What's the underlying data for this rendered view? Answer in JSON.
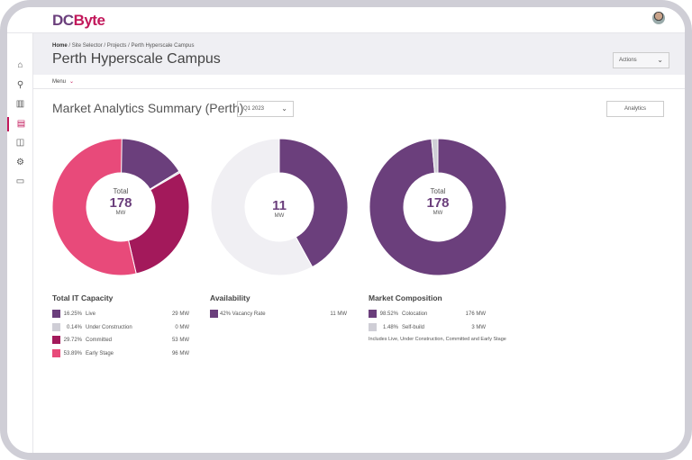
{
  "brand": {
    "logo_part1": "DC",
    "logo_part2": "Byte"
  },
  "sidebar": {
    "items": [
      {
        "icon": "home-icon"
      },
      {
        "icon": "search-icon"
      },
      {
        "icon": "bar-chart-icon"
      },
      {
        "icon": "document-icon",
        "active": true
      },
      {
        "icon": "book-icon"
      },
      {
        "icon": "gear-icon"
      },
      {
        "icon": "chat-icon"
      }
    ]
  },
  "breadcrumb": [
    "Home",
    "Site Selector",
    "Projects",
    "Perth Hyperscale Campus"
  ],
  "page_title": "Perth Hyperscale Campus",
  "actions_label": "Actions",
  "menu_label": "Menu",
  "section_title": "Market Analytics Summary (Perth)",
  "period_select": "Q1 2023",
  "analytics_button": "Analytics",
  "colors": {
    "purple": "#6b3f7c",
    "magenta": "#a3195b",
    "pink": "#e84a7a",
    "grey": "#cfced6",
    "light": "#f0eff3"
  },
  "chart_data": [
    {
      "type": "pie",
      "title": "Total IT Capacity",
      "center": {
        "label": "Total",
        "value": "178",
        "unit": "MW"
      },
      "slices": [
        {
          "name": "Live",
          "pct": "16.25%",
          "value": 16.25,
          "mw": "29",
          "color": "#6b3f7c"
        },
        {
          "name": "Under Construction",
          "pct": "0.14%",
          "value": 0.14,
          "mw": "0",
          "color": "#cfced6"
        },
        {
          "name": "Committed",
          "pct": "29.72%",
          "value": 29.72,
          "mw": "53",
          "color": "#a3195b"
        },
        {
          "name": "Early Stage",
          "pct": "53.89%",
          "value": 53.89,
          "mw": "96",
          "color": "#e84a7a"
        }
      ]
    },
    {
      "type": "pie",
      "title": "Availability",
      "center": {
        "label": "",
        "value": "11",
        "unit": "MW"
      },
      "slices": [
        {
          "name": "42% Vacancy Rate",
          "pct": "",
          "value": 42,
          "mw": "11",
          "color": "#6b3f7c"
        },
        {
          "name": "",
          "value": 58,
          "color": "#f0eff3"
        }
      ]
    },
    {
      "type": "pie",
      "title": "Market Composition",
      "center": {
        "label": "Total",
        "value": "178",
        "unit": "MW"
      },
      "slices": [
        {
          "name": "Colocation",
          "pct": "98.52%",
          "value": 98.52,
          "mw": "176",
          "color": "#6b3f7c"
        },
        {
          "name": "Self-build",
          "pct": "1.48%",
          "value": 1.48,
          "mw": "3",
          "color": "#cfced6"
        }
      ],
      "note": "Includes Live, Under Construction, Committed and Early Stage"
    }
  ],
  "unit_label": "MW"
}
